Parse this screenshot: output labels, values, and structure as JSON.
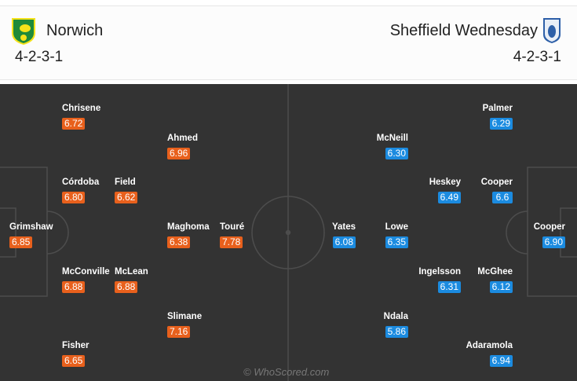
{
  "home": {
    "name": "Norwich",
    "formation": "4-2-3-1",
    "color": "#e8601c",
    "crest": "norwich-crest-icon",
    "players": [
      {
        "name": "Chrisene",
        "rating": "6.72"
      },
      {
        "name": "Ahmed",
        "rating": "6.96"
      },
      {
        "name": "Córdoba",
        "rating": "6.80"
      },
      {
        "name": "Field",
        "rating": "6.62"
      },
      {
        "name": "Grimshaw",
        "rating": "6.85"
      },
      {
        "name": "Maghoma",
        "rating": "6.38"
      },
      {
        "name": "Touré",
        "rating": "7.78"
      },
      {
        "name": "McConville",
        "rating": "6.88"
      },
      {
        "name": "McLean",
        "rating": "6.88"
      },
      {
        "name": "Slimane",
        "rating": "7.16"
      },
      {
        "name": "Fisher",
        "rating": "6.65"
      }
    ]
  },
  "away": {
    "name": "Sheffield Wednesday",
    "formation": "4-2-3-1",
    "color": "#1b8be0",
    "crest": "sheffield-wednesday-crest-icon",
    "players": [
      {
        "name": "Palmer",
        "rating": "6.29"
      },
      {
        "name": "McNeill",
        "rating": "6.30"
      },
      {
        "name": "Heskey",
        "rating": "6.49"
      },
      {
        "name": "Cooper",
        "rating": "6.6"
      },
      {
        "name": "Yates",
        "rating": "6.08"
      },
      {
        "name": "Lowe",
        "rating": "6.35"
      },
      {
        "name": "Cooper",
        "rating": "6.90"
      },
      {
        "name": "Ingelsson",
        "rating": "6.31"
      },
      {
        "name": "McGhee",
        "rating": "6.12"
      },
      {
        "name": "Ndala",
        "rating": "5.86"
      },
      {
        "name": "Adaramola",
        "rating": "6.94"
      }
    ]
  },
  "watermark": "© WhoScored.com"
}
